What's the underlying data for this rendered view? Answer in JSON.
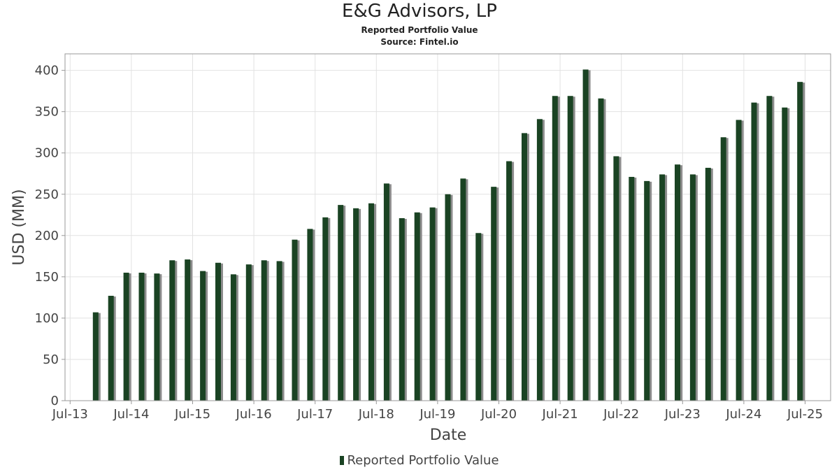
{
  "header": {
    "title": "E&G Advisors, LP",
    "subtitle": "Reported Portfolio Value",
    "source": "Source: Fintel.io"
  },
  "colors": {
    "bar": "#1a4323",
    "bar_shadow": "#8c8c8c",
    "grid": "#e2e2e2",
    "frame": "#999999"
  },
  "chart_data": {
    "type": "bar",
    "title": "E&G Advisors, LP",
    "subtitle": "Reported Portfolio Value",
    "xlabel": "Date",
    "ylabel": "USD (MM)",
    "ylim": [
      0,
      420
    ],
    "yticks": [
      0,
      50,
      100,
      150,
      200,
      250,
      300,
      350,
      400
    ],
    "x_ticks": [
      "Jul-13",
      "Jul-14",
      "Jul-15",
      "Jul-16",
      "Jul-17",
      "Jul-18",
      "Jul-19",
      "Jul-20",
      "Jul-21",
      "Jul-22",
      "Jul-23",
      "Jul-24",
      "Jul-25"
    ],
    "x_tick_dates": [
      "2013-07",
      "2014-07",
      "2015-07",
      "2016-07",
      "2017-07",
      "2018-07",
      "2019-07",
      "2020-07",
      "2021-07",
      "2022-07",
      "2023-07",
      "2024-07",
      "2025-07"
    ],
    "x_range": [
      "2013-06",
      "2025-12"
    ],
    "grid": true,
    "legend_position": "bottom",
    "series": [
      {
        "name": "Reported Portfolio Value",
        "dates": [
          "2013-12",
          "2014-03",
          "2014-06",
          "2014-09",
          "2014-12",
          "2015-03",
          "2015-06",
          "2015-09",
          "2015-12",
          "2016-03",
          "2016-06",
          "2016-09",
          "2016-12",
          "2017-03",
          "2017-06",
          "2017-09",
          "2017-12",
          "2018-03",
          "2018-06",
          "2018-09",
          "2018-12",
          "2019-03",
          "2019-06",
          "2019-09",
          "2019-12",
          "2020-03",
          "2020-06",
          "2020-09",
          "2020-12",
          "2021-03",
          "2021-06",
          "2021-09",
          "2021-12",
          "2022-03",
          "2022-06",
          "2022-09",
          "2022-12",
          "2023-03",
          "2023-06",
          "2023-09",
          "2023-12",
          "2024-03",
          "2024-06",
          "2024-09",
          "2024-12",
          "2025-03",
          "2025-06"
        ],
        "values": [
          107,
          127,
          155,
          155,
          154,
          170,
          171,
          157,
          167,
          153,
          165,
          170,
          169,
          195,
          208,
          222,
          237,
          233,
          239,
          263,
          221,
          228,
          234,
          250,
          269,
          203,
          259,
          290,
          324,
          341,
          369,
          369,
          401,
          366,
          296,
          271,
          266,
          274,
          286,
          274,
          282,
          319,
          340,
          361,
          369,
          355,
          386
        ]
      }
    ]
  }
}
